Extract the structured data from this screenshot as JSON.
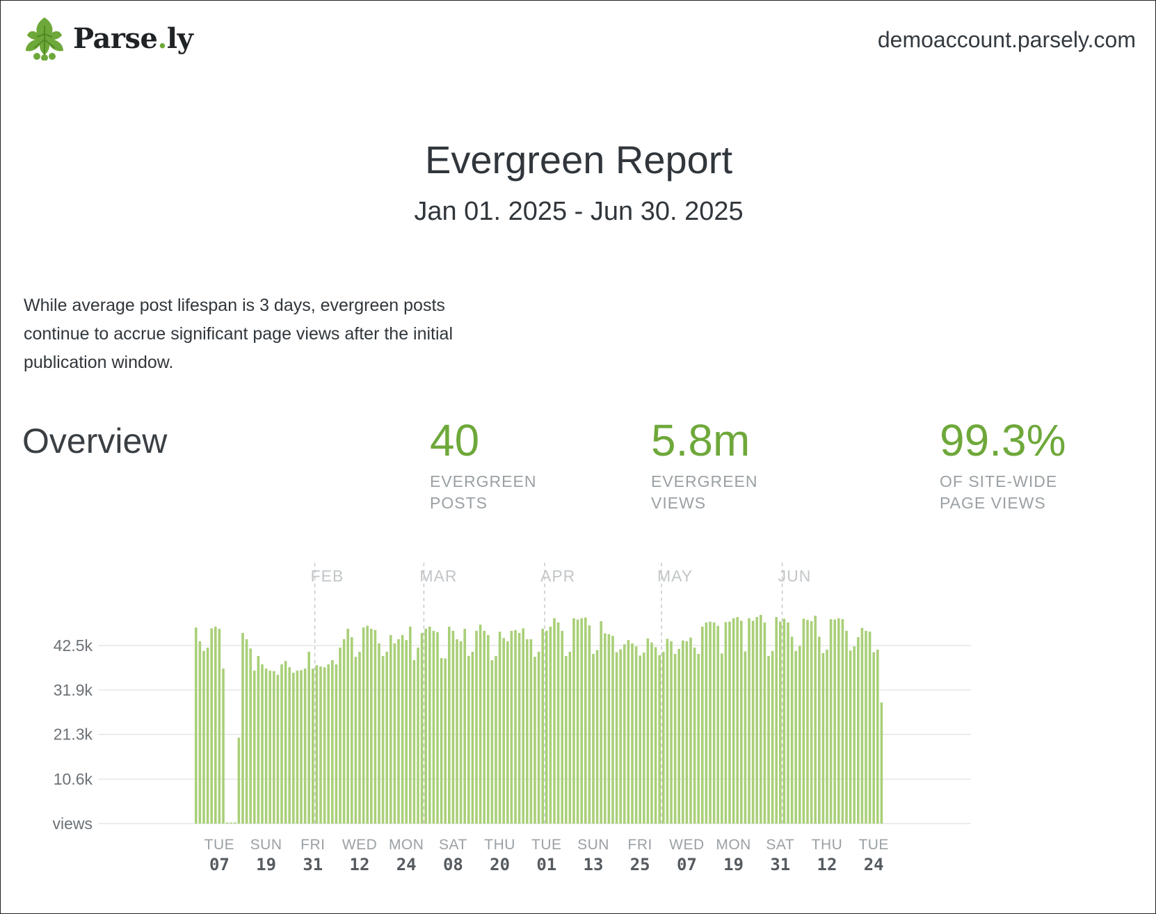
{
  "brand": {
    "name_main": "Parse",
    "name_dot": ".",
    "name_tail": "ly",
    "color_accent": "#6ea83a",
    "icon": "parsley-leaf-icon"
  },
  "header": {
    "domain": "demoaccount.parsely.com"
  },
  "report": {
    "title": "Evergreen Report",
    "date_range": "Jan 01. 2025 - Jun 30. 2025",
    "intro": "While average post lifespan is 3 days, evergreen posts continue to accrue significant page views after the initial publication window."
  },
  "overview": {
    "heading": "Overview",
    "stats": [
      {
        "value": "40",
        "label_line1": "EVERGREEN",
        "label_line2": "POSTS"
      },
      {
        "value": "5.8m",
        "label_line1": "EVERGREEN",
        "label_line2": "VIEWS"
      },
      {
        "value": "99.3%",
        "label_line1": "OF SITE-WIDE",
        "label_line2": "PAGE VIEWS"
      }
    ]
  },
  "chart_data": {
    "type": "bar",
    "ylabel": "views",
    "y_ticks": [
      {
        "value": 10600,
        "label": "10.6k"
      },
      {
        "value": 21300,
        "label": "21.3k"
      },
      {
        "value": 31900,
        "label": "31.9k"
      },
      {
        "value": 42500,
        "label": "42.5k"
      }
    ],
    "ylim": [
      0,
      53000
    ],
    "grid": true,
    "bar_color": "#a9cf78",
    "start_date": "2025-01-01",
    "month_markers": [
      {
        "label": "FEB",
        "date": "2025-02-01"
      },
      {
        "label": "MAR",
        "date": "2025-03-01"
      },
      {
        "label": "APR",
        "date": "2025-04-01"
      },
      {
        "label": "MAY",
        "date": "2025-05-01"
      },
      {
        "label": "JUN",
        "date": "2025-06-01"
      }
    ],
    "x_ticks": [
      {
        "weekday": "TUE",
        "day": "07",
        "date": "2025-01-07"
      },
      {
        "weekday": "SUN",
        "day": "19",
        "date": "2025-01-19"
      },
      {
        "weekday": "FRI",
        "day": "31",
        "date": "2025-01-31"
      },
      {
        "weekday": "WED",
        "day": "12",
        "date": "2025-02-12"
      },
      {
        "weekday": "MON",
        "day": "24",
        "date": "2025-02-24"
      },
      {
        "weekday": "SAT",
        "day": "08",
        "date": "2025-03-08"
      },
      {
        "weekday": "THU",
        "day": "20",
        "date": "2025-03-20"
      },
      {
        "weekday": "TUE",
        "day": "01",
        "date": "2025-04-01"
      },
      {
        "weekday": "SUN",
        "day": "13",
        "date": "2025-04-13"
      },
      {
        "weekday": "FRI",
        "day": "25",
        "date": "2025-04-25"
      },
      {
        "weekday": "WED",
        "day": "07",
        "date": "2025-05-07"
      },
      {
        "weekday": "MON",
        "day": "19",
        "date": "2025-05-19"
      },
      {
        "weekday": "SAT",
        "day": "31",
        "date": "2025-05-31"
      },
      {
        "weekday": "THU",
        "day": "12",
        "date": "2025-06-12"
      },
      {
        "weekday": "TUE",
        "day": "24",
        "date": "2025-06-24"
      }
    ],
    "values": [
      46800,
      43500,
      41200,
      42000,
      46600,
      47000,
      46500,
      37000,
      0,
      0,
      0,
      20500,
      45500,
      44000,
      41800,
      36500,
      40000,
      38000,
      37000,
      36500,
      36400,
      35500,
      38000,
      38800,
      37300,
      36000,
      36500,
      36600,
      37000,
      41000,
      37000,
      37800,
      37500,
      37300,
      38000,
      39000,
      38000,
      42000,
      44000,
      46500,
      44500,
      39800,
      41000,
      46800,
      47200,
      46500,
      46200,
      43000,
      40000,
      41000,
      45000,
      43000,
      44000,
      45000,
      43800,
      47000,
      39000,
      42000,
      45500,
      46500,
      47000,
      46000,
      45700,
      39500,
      39400,
      47000,
      46000,
      44000,
      43500,
      46500,
      40000,
      41000,
      46000,
      47500,
      46000,
      45000,
      39000,
      40000,
      45800,
      44300,
      43500,
      46000,
      46200,
      45500,
      46600,
      44000,
      44000,
      39800,
      41000,
      46500,
      46000,
      47000,
      49000,
      48000,
      46000,
      40000,
      41000,
      49000,
      48700,
      49000,
      49200,
      47300,
      40500,
      41400,
      48300,
      45400,
      45200,
      44800,
      40900,
      41600,
      42800,
      43800,
      43000,
      42300,
      40100,
      40800,
      44200,
      43200,
      42100,
      40200,
      41000,
      44100,
      43500,
      40500,
      41700,
      43700,
      43500,
      44400,
      42000,
      40500,
      47000,
      48000,
      48200,
      48000,
      47200,
      40600,
      48100,
      48200,
      49000,
      49300,
      48400,
      41100,
      49000,
      48400,
      49300,
      49800,
      48000,
      40000,
      41200,
      49300,
      48200,
      48900,
      48000,
      44600,
      41200,
      42400,
      48900,
      48600,
      48300,
      49600,
      44600,
      40700,
      41500,
      48800,
      48700,
      49000,
      48800,
      46000,
      41300,
      42300,
      44500,
      46700,
      46000,
      45800,
      40900,
      41500,
      28900
    ]
  }
}
